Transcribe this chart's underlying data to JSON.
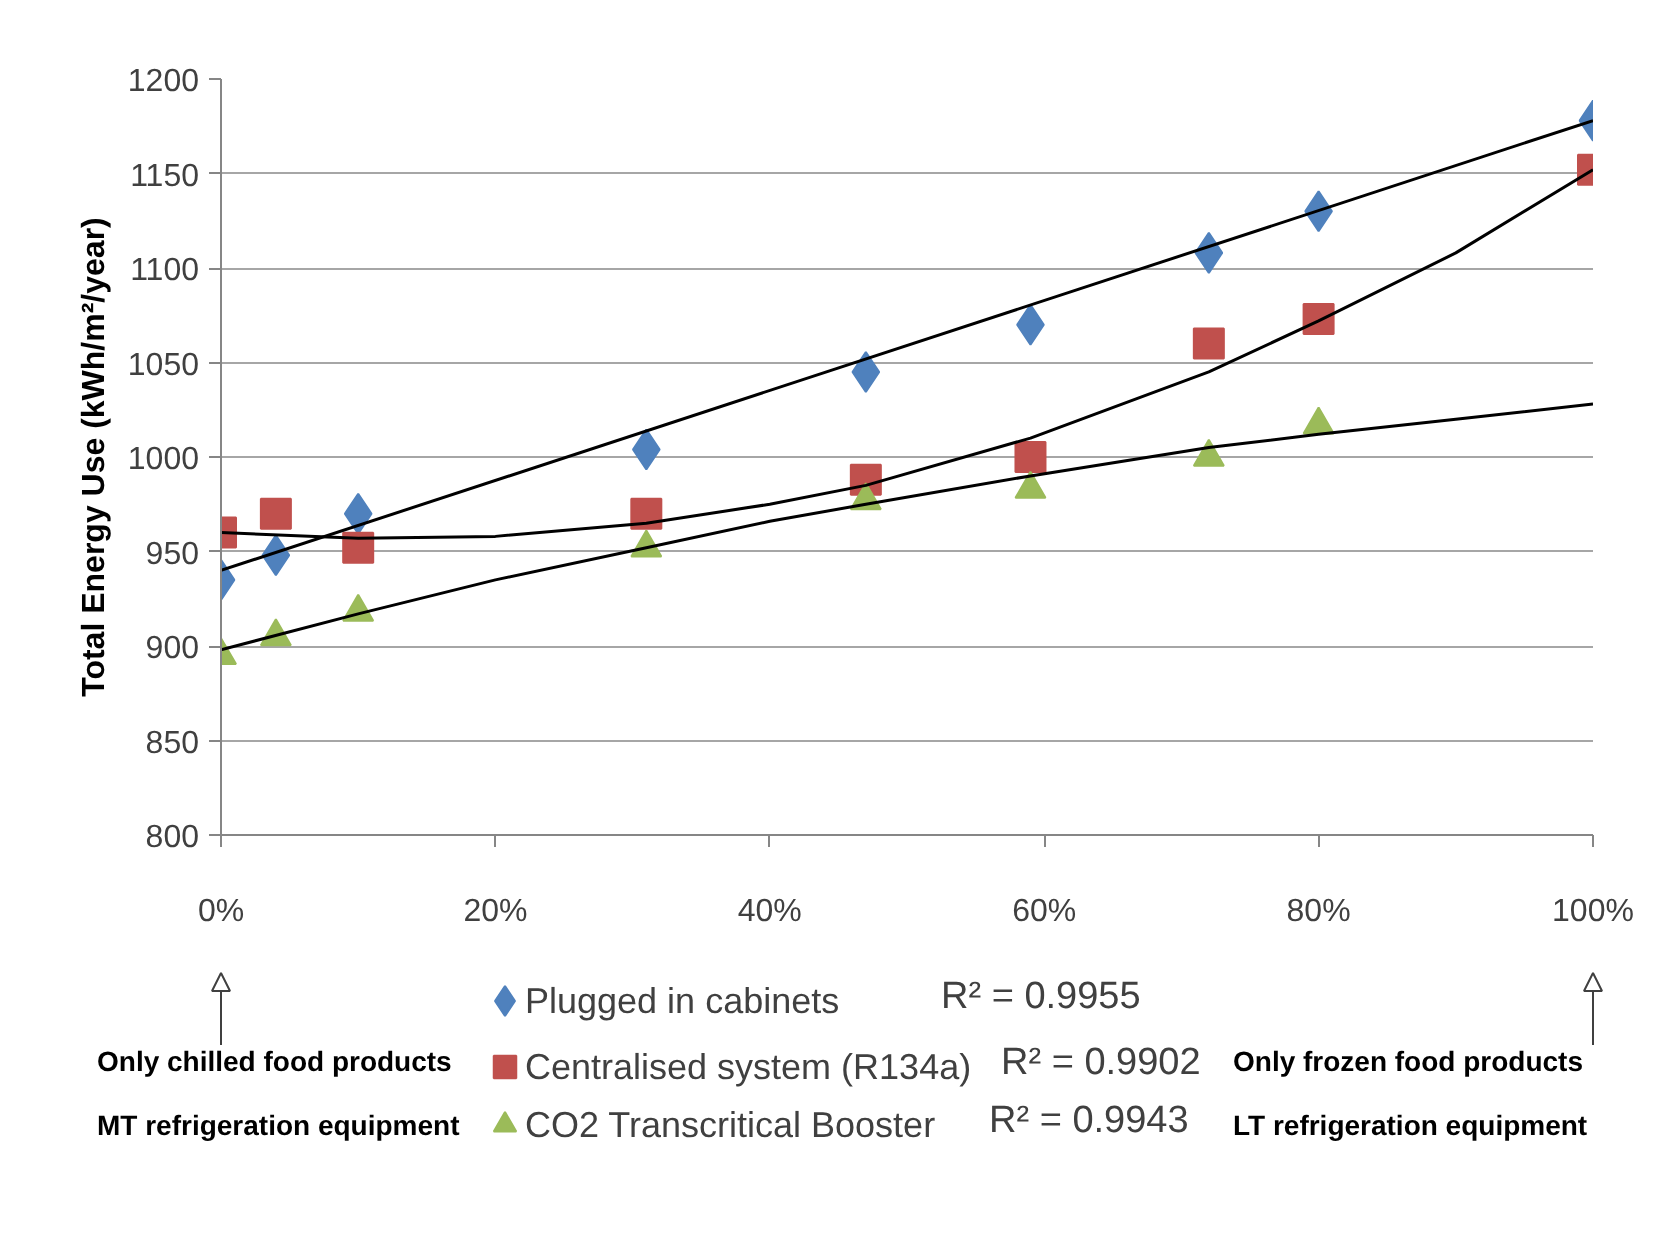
{
  "chart_data": {
    "type": "scatter",
    "ylabel": "Total Energy Use (kWh/m²/year)",
    "xlim": [
      0,
      100
    ],
    "xticks": [
      {
        "value": 0,
        "label": "0%"
      },
      {
        "value": 20,
        "label": "20%"
      },
      {
        "value": 40,
        "label": "40%"
      },
      {
        "value": 60,
        "label": "60%"
      },
      {
        "value": 80,
        "label": "80%"
      },
      {
        "value": 100,
        "label": "100%"
      }
    ],
    "ylim": [
      800,
      1200
    ],
    "yticks": [
      800,
      850,
      900,
      950,
      1000,
      1050,
      1100,
      1150,
      1200
    ],
    "grid": "y",
    "legend": "bottom",
    "series": [
      {
        "name": "Plugged in cabinets",
        "color": "#4f81bd",
        "marker": "diamond",
        "x": [
          0,
          4,
          10,
          31,
          47,
          59,
          72,
          80,
          100
        ],
        "values": [
          935,
          948,
          970,
          1004,
          1045,
          1070,
          1108,
          1130,
          1178
        ]
      },
      {
        "name": "Centralised system (R134a)",
        "color": "#c0504d",
        "marker": "square",
        "x": [
          0,
          4,
          10,
          31,
          47,
          59,
          72,
          80,
          100
        ],
        "values": [
          960,
          970,
          952,
          970,
          988,
          1000,
          1060,
          1073,
          1152
        ]
      },
      {
        "name": "CO2 Transcritical Booster",
        "color": "#9bbb59",
        "marker": "triangle",
        "x": [
          0,
          4,
          10,
          31,
          47,
          59,
          72,
          80
        ],
        "values": [
          895,
          905,
          918,
          952,
          977,
          983,
          1000,
          1017
        ]
      },
      {
        "type": "line",
        "color": "#000000",
        "x": [
          0,
          100
        ],
        "values": [
          940,
          1178
        ]
      },
      {
        "type": "line",
        "color": "#000000",
        "x": [
          0,
          10,
          20,
          31,
          40,
          47,
          59,
          72,
          80,
          90,
          100
        ],
        "values": [
          960,
          957,
          958,
          965,
          975,
          985,
          1010,
          1045,
          1072,
          1108,
          1152
        ]
      },
      {
        "type": "line",
        "color": "#000000",
        "x": [
          0,
          10,
          20,
          31,
          40,
          47,
          59,
          72,
          80,
          90,
          100
        ],
        "values": [
          898,
          917,
          935,
          952,
          966,
          975,
          990,
          1005,
          1012,
          1020,
          1028
        ]
      }
    ],
    "annotations": [
      "R² = 0.9955",
      "R² = 0.9902",
      "R² = 0.9943",
      "Only chilled food products\nMT refrigeration equipment",
      "Only frozen food products\nLT refrigeration equipment"
    ]
  }
}
